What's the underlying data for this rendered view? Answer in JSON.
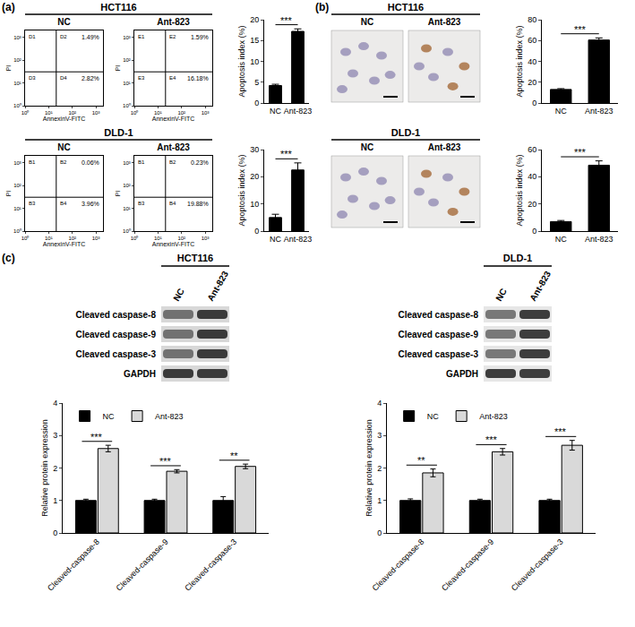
{
  "panel_labels": [
    "(a)",
    "(b)",
    "(c)"
  ],
  "flow_cytometry": {
    "x_label": "AnnexinV-FITC",
    "y_label": "PI",
    "xlim": [
      1,
      2000
    ],
    "ylim": [
      1,
      2000
    ],
    "xticks": [
      {
        "value": 1,
        "label": "10⁰"
      },
      {
        "value": 10,
        "label": "10¹"
      },
      {
        "value": 100,
        "label": "10²"
      },
      {
        "value": 1000,
        "label": "10³"
      }
    ],
    "yticks": [
      {
        "value": 1,
        "label": "10⁰"
      },
      {
        "value": 10,
        "label": "10¹"
      },
      {
        "value": 100,
        "label": "10²"
      },
      {
        "value": 1000,
        "label": "10³"
      }
    ],
    "groups": [
      {
        "cell_line": "HCT116",
        "plots": [
          {
            "name": "NC",
            "quadrants": [
              "D1",
              "D2",
              "D3",
              "D4"
            ],
            "upper_right": "1.49%",
            "lower_right": "2.82%"
          },
          {
            "name": "Ant-823",
            "quadrants": [
              "E1",
              "E2",
              "E3",
              "E4"
            ],
            "upper_right": "1.59%",
            "lower_right": "16.18%"
          }
        ]
      },
      {
        "cell_line": "DLD-1",
        "plots": [
          {
            "name": "NC",
            "quadrants": [
              "B1",
              "B2",
              "B3",
              "B4"
            ],
            "upper_right": "0.06%",
            "lower_right": "3.96%"
          },
          {
            "name": "Ant-823",
            "quadrants": [
              "B1",
              "B2",
              "B3",
              "B4"
            ],
            "upper_right": "0.23%",
            "lower_right": "19.88%"
          }
        ]
      }
    ]
  },
  "tunel_images": {
    "groups": [
      {
        "cell_line": "HCT116",
        "columns": [
          "NC",
          "Ant-823"
        ]
      },
      {
        "cell_line": "DLD-1",
        "columns": [
          "NC",
          "Ant-823"
        ]
      }
    ]
  },
  "western_blots": [
    {
      "cell_line": "HCT116",
      "columns": [
        "NC",
        "Ant-823"
      ],
      "rows": [
        "Cleaved caspase-8",
        "Cleaved caspase-9",
        "Cleaved caspase-3",
        "GAPDH"
      ]
    },
    {
      "cell_line": "DLD-1",
      "columns": [
        "NC",
        "Ant-823"
      ],
      "rows": [
        "Cleaved caspase-8",
        "Cleaved caspase-9",
        "Cleaved caspase-3",
        "GAPDH"
      ]
    }
  ],
  "chart_data": [
    {
      "type": "bar",
      "categories": [
        "NC",
        "Ant-823"
      ],
      "values": [
        4.2,
        17.2
      ],
      "errors": [
        0.3,
        0.6
      ],
      "color": "#000000",
      "ylabel": "Apoptosis index (%)",
      "ylim": [
        0,
        20
      ],
      "yticks": [
        0,
        5,
        10,
        15,
        20
      ],
      "significance": "***"
    },
    {
      "type": "bar",
      "categories": [
        "NC",
        "Ant-823"
      ],
      "values": [
        5.0,
        22.5
      ],
      "errors": [
        1.2,
        2.6
      ],
      "color": "#000000",
      "ylabel": "Apoptosis index (%)",
      "ylim": [
        0,
        30
      ],
      "yticks": [
        0,
        10,
        20,
        30
      ],
      "significance": "***"
    },
    {
      "type": "bar",
      "categories": [
        "NC",
        "Ant-823"
      ],
      "values": [
        13,
        60.5
      ],
      "errors": [
        0.8,
        2
      ],
      "color": "#000000",
      "ylabel": "Apoptosis index (%)",
      "ylim": [
        0,
        80
      ],
      "yticks": [
        0,
        20,
        40,
        60,
        80
      ],
      "significance": "***"
    },
    {
      "type": "bar",
      "categories": [
        "NC",
        "Ant-823"
      ],
      "values": [
        7,
        48.5
      ],
      "errors": [
        0.8,
        3.2
      ],
      "color": "#000000",
      "ylabel": "Apoptosis index (%)",
      "ylim": [
        0,
        60
      ],
      "yticks": [
        0,
        20,
        40,
        60
      ],
      "significance": "***"
    },
    {
      "type": "bar",
      "categories": [
        "Cleaved-caspase-8",
        "Cleaved-caspase-9",
        "Cleaved-caspase-3"
      ],
      "series": [
        {
          "name": "NC",
          "color": "#000000",
          "values": [
            1,
            1,
            1
          ],
          "errors": [
            0.04,
            0.04,
            0.12
          ]
        },
        {
          "name": "Ant-823",
          "color": "#d9d9d9",
          "values": [
            2.6,
            1.9,
            2.05
          ],
          "errors": [
            0.1,
            0.05,
            0.07
          ]
        }
      ],
      "significance": [
        "***",
        "***",
        "**"
      ],
      "ylabel": "Relative protein expression",
      "ylim": [
        0,
        4
      ],
      "yticks": [
        0,
        1,
        2,
        3,
        4
      ],
      "legend": "top-left"
    },
    {
      "type": "bar",
      "categories": [
        "Cleaved-caspase-8",
        "Cleaved-caspase-9",
        "Cleaved-caspase-3"
      ],
      "series": [
        {
          "name": "NC",
          "color": "#000000",
          "values": [
            1,
            1,
            1
          ],
          "errors": [
            0.05,
            0.04,
            0.04
          ]
        },
        {
          "name": "Ant-823",
          "color": "#d9d9d9",
          "values": [
            1.85,
            2.5,
            2.7
          ],
          "errors": [
            0.12,
            0.1,
            0.15
          ]
        }
      ],
      "significance": [
        "**",
        "***",
        "***"
      ],
      "ylabel": "Relative protein expression",
      "ylim": [
        0,
        4
      ],
      "yticks": [
        0,
        1,
        2,
        3,
        4
      ],
      "legend": "top-left"
    }
  ]
}
